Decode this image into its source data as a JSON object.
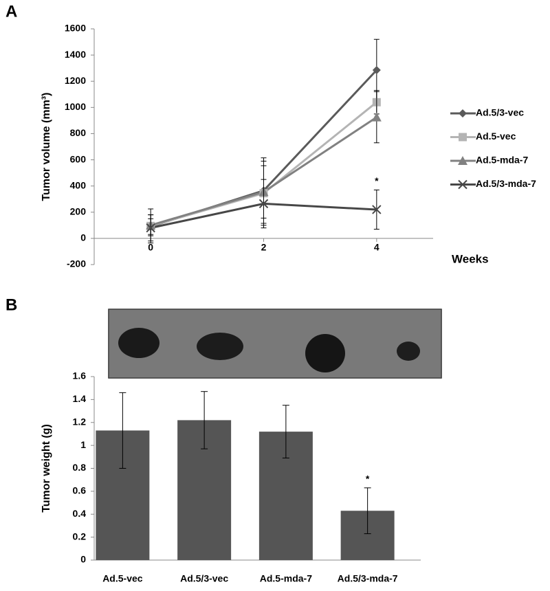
{
  "chart_data": [
    {
      "type": "line",
      "panel": "A",
      "y_label": "Tumor volume (mm³)",
      "x_label": "Weeks",
      "x": [
        0,
        2,
        4
      ],
      "xlim": [
        -1,
        5
      ],
      "xticks": [
        0,
        2,
        4
      ],
      "ylim": [
        -200,
        1600
      ],
      "yticks": [
        -200,
        0,
        200,
        400,
        600,
        800,
        1000,
        1200,
        1400,
        1600
      ],
      "annotation": "*",
      "series": [
        {
          "name": "Ad.5/3-vec",
          "color": "#5a5a5a",
          "marker": "diamond",
          "values": [
            90,
            365,
            1285
          ],
          "errors": [
            60,
            250,
            235
          ]
        },
        {
          "name": "Ad.5-vec",
          "color": "#b4b4b4",
          "marker": "square",
          "values": [
            95,
            345,
            1040
          ],
          "errors": [
            130,
            245,
            90
          ]
        },
        {
          "name": "Ad.5-mda-7",
          "color": "#818181",
          "marker": "triangle",
          "values": [
            100,
            355,
            925
          ],
          "errors": [
            80,
            200,
            195
          ]
        },
        {
          "name": "Ad.5/3-mda-7",
          "color": "#474747",
          "marker": "x",
          "values": [
            80,
            265,
            220
          ],
          "errors": [
            100,
            185,
            150
          ]
        }
      ]
    },
    {
      "type": "bar",
      "panel": "B",
      "y_label": "Tumor weight (g)",
      "categories": [
        "Ad.5-vec",
        "Ad.5/3-vec",
        "Ad.5-mda-7",
        "Ad.5/3-mda-7"
      ],
      "values": [
        1.13,
        1.22,
        1.12,
        0.43
      ],
      "errors": [
        0.33,
        0.25,
        0.23,
        0.2
      ],
      "color": "#555555",
      "ylim": [
        0,
        1.6
      ],
      "yticks": [
        0,
        0.2,
        0.4,
        0.6,
        0.8,
        1,
        1.2,
        1.4,
        1.6
      ],
      "annotation": "*"
    }
  ]
}
